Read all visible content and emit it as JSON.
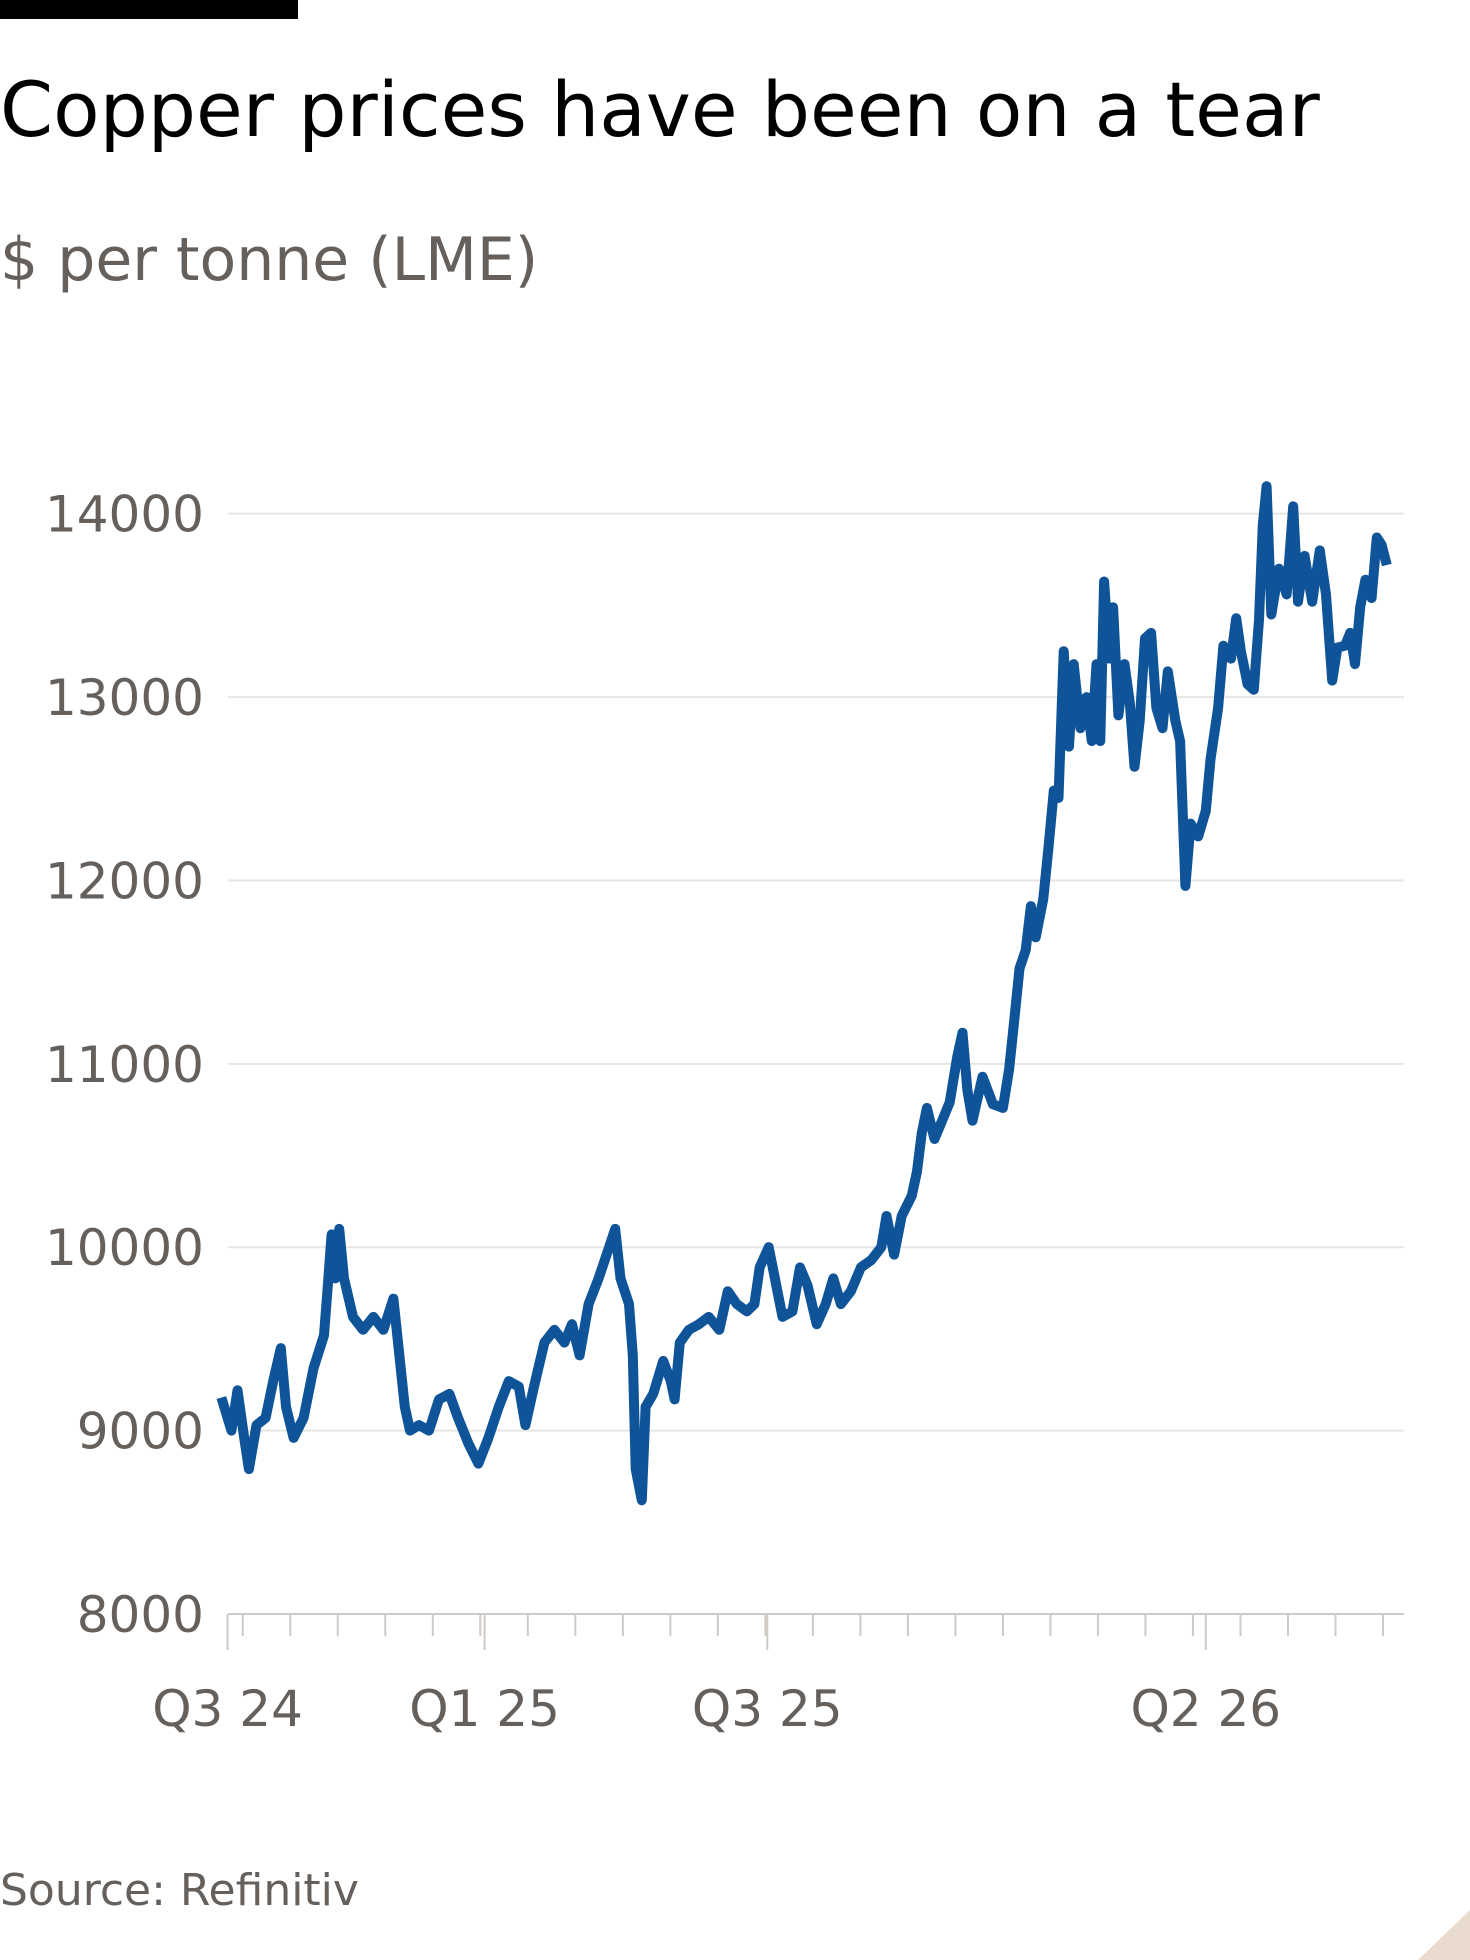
{
  "chart_data": {
    "type": "line",
    "title": "Copper prices have been on a tear",
    "subtitle": "$ per tonne (LME)",
    "source": "Source: Refinitiv",
    "x": [
      -0.45,
      -0.24,
      -0.11,
      0.03,
      0.13,
      0.29,
      0.48,
      0.64,
      0.8,
      0.91,
      1.07,
      1.28,
      1.49,
      1.71,
      1.79,
      1.87,
      1.95,
      2.03,
      2.13,
      2.32,
      2.53,
      2.75,
      2.96,
      3.17,
      3.28,
      3.41,
      3.52,
      3.71,
      3.92,
      4.13,
      4.35,
      4.53,
      4.75,
      4.96,
      5.17,
      5.39,
      5.6,
      5.81,
      5.95,
      6.13,
      6.35,
      6.56,
      6.77,
      6.93,
      7.09,
      7.28,
      7.49,
      7.71,
      7.84,
      7.95,
      8.13,
      8.21,
      8.27,
      8.4,
      8.48,
      8.64,
      8.85,
      9.01,
      9.09,
      9.2,
      9.39,
      9.6,
      9.81,
      10.03,
      10.21,
      10.4,
      10.61,
      10.77,
      10.88,
      11.07,
      11.2,
      11.36,
      11.57,
      11.73,
      11.89,
      12.08,
      12.27,
      12.43,
      12.59,
      12.8,
      13.01,
      13.23,
      13.44,
      13.55,
      13.71,
      13.87,
      14.08,
      14.19,
      14.29,
      14.4,
      14.56,
      14.72,
      14.88,
      15.04,
      15.15,
      15.25,
      15.36,
      15.57,
      15.79,
      16.0,
      16.13,
      16.24,
      16.35,
      16.48,
      16.59,
      16.69,
      16.85,
      16.96,
      17.07,
      17.17,
      17.28,
      17.39,
      17.49,
      17.63,
      17.76,
      17.87,
      17.97,
      18.05,
      18.13,
      18.24,
      18.32,
      18.43,
      18.56,
      18.67,
      18.77,
      18.88,
      18.99,
      19.12,
      19.23,
      19.36,
      19.47,
      19.63,
      19.73,
      19.84,
      19.95,
      20.11,
      20.27,
      20.37,
      20.53,
      20.64,
      20.8,
      20.91,
      21.01,
      21.15,
      21.28,
      21.39,
      21.47,
      21.55,
      21.65,
      21.81,
      21.97,
      22.11,
      22.21,
      22.35,
      22.51,
      22.67,
      22.8,
      22.93,
      23.04,
      23.2,
      23.31,
      23.41,
      23.52,
      23.63,
      23.76,
      23.87,
      23.97,
      24.08
    ],
    "series": [
      {
        "color": "#0f5499",
        "values": [
          9180,
          9000,
          9220,
          8960,
          8790,
          9030,
          9070,
          9270,
          9450,
          9130,
          8960,
          9070,
          9340,
          9520,
          9790,
          10070,
          9830,
          10100,
          9830,
          9620,
          9550,
          9620,
          9550,
          9720,
          9450,
          9130,
          9000,
          9030,
          9000,
          9170,
          9200,
          9070,
          8930,
          8820,
          8960,
          9130,
          9270,
          9240,
          9030,
          9240,
          9480,
          9550,
          9480,
          9580,
          9410,
          9690,
          9830,
          10000,
          10100,
          9830,
          9690,
          9410,
          8790,
          8620,
          9130,
          9200,
          9380,
          9270,
          9170,
          9480,
          9550,
          9580,
          9620,
          9550,
          9760,
          9690,
          9650,
          9690,
          9890,
          10000,
          9830,
          9620,
          9650,
          9890,
          9790,
          9580,
          9690,
          9830,
          9690,
          9760,
          9890,
          9930,
          10000,
          10170,
          9960,
          10170,
          10280,
          10410,
          10620,
          10760,
          10590,
          10690,
          10790,
          11040,
          11170,
          10860,
          10690,
          10930,
          10780,
          10760,
          10970,
          11240,
          11520,
          11620,
          11860,
          11690,
          11900,
          12180,
          12490,
          12450,
          13250,
          12730,
          13180,
          12830,
          13000,
          12760,
          13180,
          12760,
          13630,
          13210,
          13490,
          12900,
          13180,
          12970,
          12620,
          12870,
          13320,
          13350,
          12940,
          12830,
          13140,
          12870,
          12760,
          11970,
          12310,
          12240,
          12380,
          12660,
          12940,
          13280,
          13210,
          13430,
          13250,
          13070,
          13040,
          13420,
          13940,
          14150,
          13450,
          13700,
          13560,
          14040,
          13520,
          13770,
          13520,
          13800,
          13560,
          13090,
          13270,
          13280,
          13350,
          13180,
          13490,
          13640,
          13540,
          13870,
          13830,
          13720
        ]
      }
    ],
    "xlim": [
      -0.5,
      24.4
    ],
    "ylim": [
      8000,
      14200
    ],
    "yticks": [
      8000,
      9000,
      10000,
      11000,
      12000,
      13000,
      14000
    ],
    "xticks": [
      {
        "value": -0.32,
        "label": "Q3 24"
      },
      {
        "value": 5.09,
        "label": "Q1 25"
      },
      {
        "value": 11.04,
        "label": "Q3 25"
      },
      {
        "value": 20.27,
        "label": "Q2 26"
      }
    ],
    "xminorticks": [
      0,
      1,
      2,
      3,
      4,
      5,
      6,
      7,
      8,
      9,
      10,
      11,
      12,
      13,
      14,
      15,
      16,
      17,
      18,
      19,
      20,
      21,
      22,
      23,
      24
    ],
    "grid": true
  }
}
